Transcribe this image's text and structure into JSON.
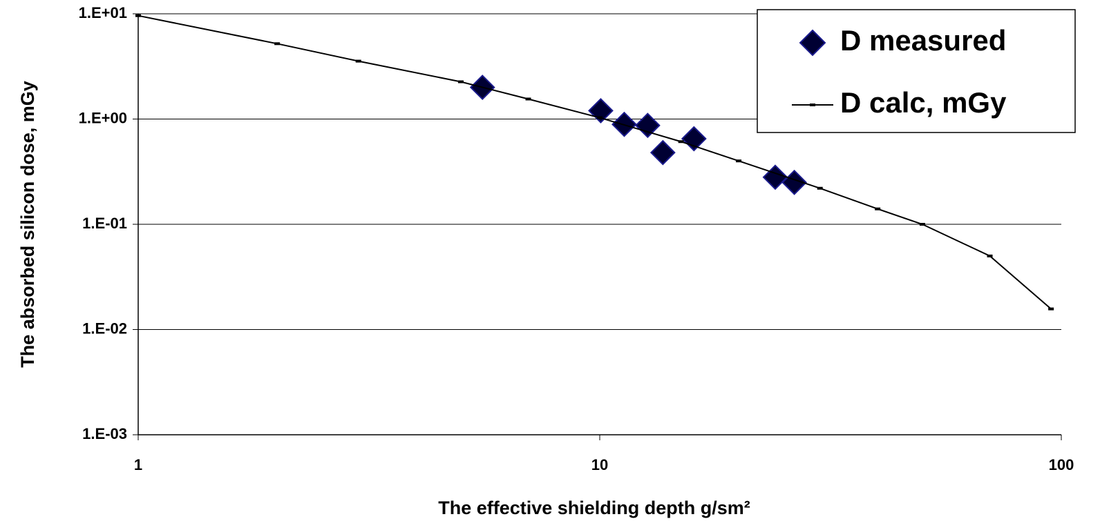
{
  "chart_data": {
    "type": "scatter",
    "x_label": "The effective shielding depth  g/sm²",
    "y_label": "The absorbed silicon dose, mGy",
    "xscale": "log",
    "yscale": "log",
    "xlim": [
      1,
      100
    ],
    "xticks": [
      1,
      10,
      100
    ],
    "ylim": [
      0.001,
      10
    ],
    "yticks": [
      {
        "value": 0.001,
        "label": "1.E-03"
      },
      {
        "value": 0.01,
        "label": "1.E-02"
      },
      {
        "value": 0.1,
        "label": "1.E-01"
      },
      {
        "value": 1,
        "label": "1.E+00"
      },
      {
        "value": 10,
        "label": "1.E+01"
      }
    ],
    "grid": true,
    "legend": "upper right",
    "series": [
      {
        "name": "D measured",
        "mode": "markers",
        "color": "#000033",
        "x": [
          5.57,
          10.05,
          11.3,
          12.7,
          13.7,
          16.0,
          24.0,
          26.4
        ],
        "values": [
          2.0,
          1.2,
          0.89,
          0.87,
          0.48,
          0.65,
          0.28,
          0.25
        ]
      },
      {
        "name": "D calc, mGy",
        "mode": "lines",
        "color": "#000000",
        "x": [
          1,
          2,
          3,
          5,
          7,
          10,
          15,
          20,
          30,
          40,
          50,
          70,
          95
        ],
        "values": [
          9.6,
          5.2,
          3.55,
          2.26,
          1.55,
          1.03,
          0.61,
          0.4,
          0.22,
          0.14,
          0.1,
          0.05,
          0.0157
        ]
      }
    ]
  }
}
